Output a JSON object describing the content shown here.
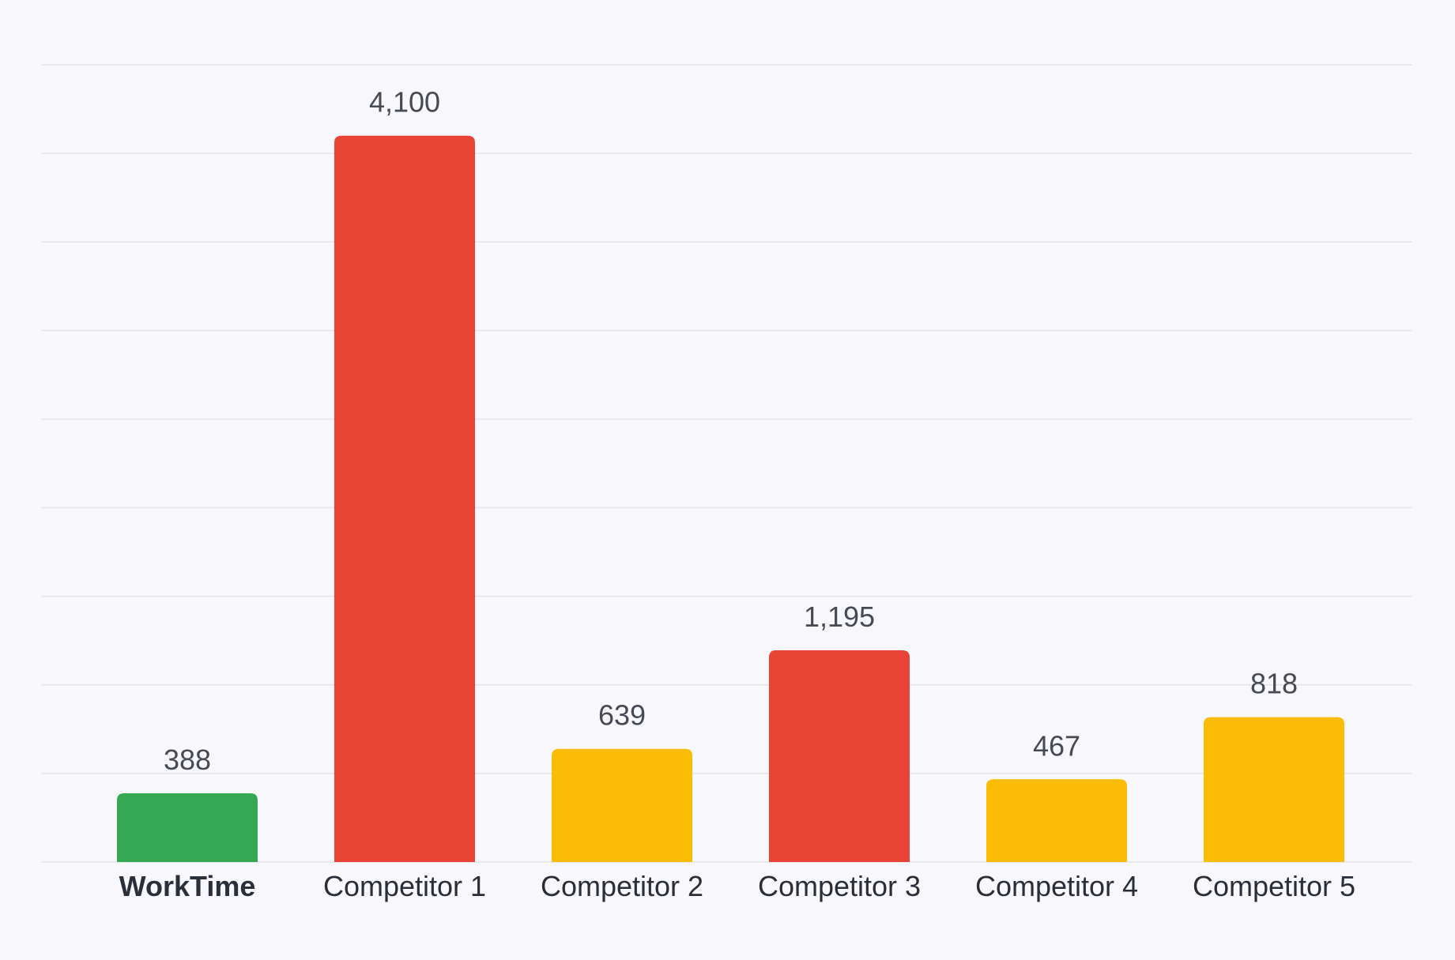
{
  "colors": {
    "background": "#f8f8fc",
    "gridline": "#e3e3e8",
    "label_text": "#464a52",
    "highlight": "#34a853",
    "high": "#e84436",
    "medium": "#fbbc05"
  },
  "chart_data": {
    "type": "bar",
    "title": "",
    "xlabel": "",
    "ylabel": "",
    "ylim": [
      0,
      4500
    ],
    "grid": true,
    "gridline_step": 500,
    "legend": "none",
    "categories": [
      "WorkTime",
      "Competitor 1",
      "Competitor 2",
      "Competitor 3",
      "Competitor 4",
      "Competitor 5"
    ],
    "values": [
      388,
      4100,
      639,
      1195,
      467,
      818
    ],
    "value_labels": [
      "388",
      "4,100",
      "639",
      "1,195",
      "467",
      "818"
    ],
    "bar_colors": [
      "#34a853",
      "#e84436",
      "#fbbc05",
      "#e84436",
      "#fbbc05",
      "#fbbc05"
    ],
    "highlight_category": "WorkTime"
  }
}
